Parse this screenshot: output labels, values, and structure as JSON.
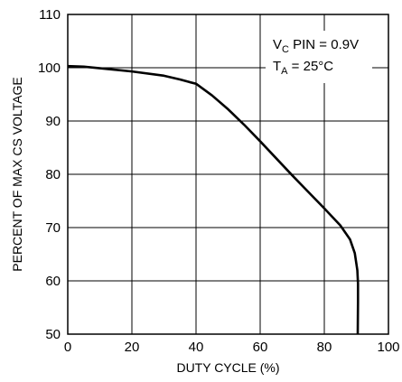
{
  "chart_data": {
    "type": "line",
    "title": "",
    "xlabel": "DUTY CYCLE (%)",
    "ylabel": "PERCENT OF MAX CS VOLTAGE",
    "xlim": [
      0,
      100
    ],
    "ylim": [
      50,
      110
    ],
    "xticks": [
      0,
      20,
      40,
      60,
      80,
      100
    ],
    "yticks": [
      50,
      60,
      70,
      80,
      90,
      100,
      110
    ],
    "grid": true,
    "legend": "none",
    "annotations": [
      {
        "text": "V",
        "sub": "C",
        "rest": " PIN = 0.9V"
      },
      {
        "text": "T",
        "sub": "A",
        "rest": " = 25°C"
      }
    ],
    "series": [
      {
        "color": "#000000",
        "x": [
          0,
          5,
          10,
          20,
          30,
          35,
          38,
          40,
          45,
          50,
          55,
          60,
          65,
          70,
          75,
          80,
          85,
          88,
          89.5,
          90.3,
          90.5,
          90.5,
          90.4
        ],
        "y": [
          100.3,
          100.2,
          99.9,
          99.3,
          98.5,
          97.8,
          97.3,
          97.0,
          94.8,
          92.2,
          89.3,
          86.2,
          83.0,
          79.8,
          76.7,
          73.6,
          70.4,
          67.8,
          65.2,
          62.0,
          59.5,
          56.0,
          48.5
        ]
      }
    ]
  }
}
